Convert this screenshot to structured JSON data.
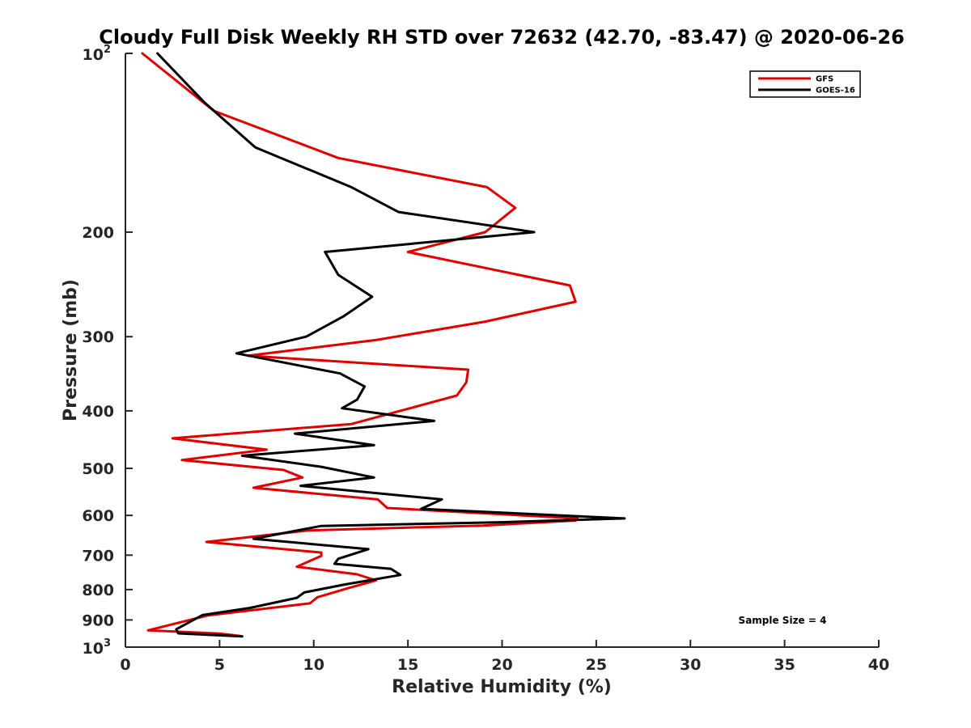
{
  "chart_data": {
    "type": "line",
    "title": "Cloudy Full Disk Weekly RH STD over 72632 (42.70, -83.47) @ 2020-06-26",
    "xlabel": "Relative Humidity (%)",
    "ylabel": "Pressure (mb)",
    "xlim": [
      0,
      40
    ],
    "ylim": [
      100,
      1000
    ],
    "y_scale": "log",
    "y_reversed": true,
    "grid": false,
    "legend_position": "top-right",
    "x_ticks": [
      "0",
      "5",
      "10",
      "15",
      "20",
      "25",
      "30",
      "35",
      "40"
    ],
    "x_tick_values": [
      0,
      5,
      10,
      15,
      20,
      25,
      30,
      35,
      40
    ],
    "y_ticks": [
      {
        "value": 100,
        "base": "10",
        "exp": "2"
      },
      {
        "value": 200,
        "label": "200"
      },
      {
        "value": 300,
        "label": "300"
      },
      {
        "value": 400,
        "label": "400"
      },
      {
        "value": 500,
        "label": "500"
      },
      {
        "value": 600,
        "label": "600"
      },
      {
        "value": 700,
        "label": "700"
      },
      {
        "value": 800,
        "label": "800"
      },
      {
        "value": 900,
        "label": "900"
      },
      {
        "value": 1000,
        "base": "10",
        "exp": "3"
      }
    ],
    "annotation": "Sample Size = 4",
    "series": [
      {
        "name": "GFS",
        "color": "#e00000",
        "points": [
          [
            0.9,
            100
          ],
          [
            4.7,
            125
          ],
          [
            11.3,
            150
          ],
          [
            19.2,
            168
          ],
          [
            20.7,
            182
          ],
          [
            19.1,
            200
          ],
          [
            15.0,
            216
          ],
          [
            23.6,
            246
          ],
          [
            23.9,
            262
          ],
          [
            19.1,
            283
          ],
          [
            13.3,
            304
          ],
          [
            6.5,
            323
          ],
          [
            18.2,
            341
          ],
          [
            18.1,
            358
          ],
          [
            17.6,
            377
          ],
          [
            12.0,
            421
          ],
          [
            2.5,
            445
          ],
          [
            7.5,
            465
          ],
          [
            3.0,
            484
          ],
          [
            8.4,
            503
          ],
          [
            9.4,
            518
          ],
          [
            6.8,
            539
          ],
          [
            13.4,
            564
          ],
          [
            13.9,
            583
          ],
          [
            24.0,
            607
          ],
          [
            23.9,
            612
          ],
          [
            19.0,
            624
          ],
          [
            9.7,
            636
          ],
          [
            4.3,
            665
          ],
          [
            10.4,
            693
          ],
          [
            10.4,
            702
          ],
          [
            9.1,
            732
          ],
          [
            12.3,
            754
          ],
          [
            13.3,
            772
          ],
          [
            11.8,
            796
          ],
          [
            10.2,
            824
          ],
          [
            9.8,
            844
          ],
          [
            4.4,
            884
          ],
          [
            1.2,
            937
          ],
          [
            5.0,
            949
          ],
          [
            6.1,
            958
          ]
        ]
      },
      {
        "name": "GOES-16",
        "color": "#000000",
        "points": [
          [
            1.7,
            100
          ],
          [
            4.2,
            121
          ],
          [
            6.9,
            144
          ],
          [
            12.0,
            168
          ],
          [
            14.5,
            185
          ],
          [
            21.7,
            200
          ],
          [
            10.6,
            216
          ],
          [
            11.3,
            236
          ],
          [
            13.1,
            257
          ],
          [
            11.6,
            277
          ],
          [
            9.6,
            300
          ],
          [
            5.9,
            320
          ],
          [
            11.4,
            346
          ],
          [
            12.7,
            364
          ],
          [
            12.3,
            383
          ],
          [
            11.5,
            396
          ],
          [
            16.4,
            416
          ],
          [
            9.0,
            437
          ],
          [
            13.2,
            457
          ],
          [
            6.2,
            476
          ],
          [
            10.4,
            497
          ],
          [
            13.2,
            518
          ],
          [
            9.3,
            535
          ],
          [
            16.8,
            564
          ],
          [
            15.7,
            585
          ],
          [
            26.5,
            607
          ],
          [
            20.0,
            616
          ],
          [
            10.4,
            625
          ],
          [
            6.8,
            657
          ],
          [
            12.9,
            684
          ],
          [
            11.3,
            710
          ],
          [
            11.1,
            724
          ],
          [
            14.1,
            738
          ],
          [
            14.6,
            756
          ],
          [
            11.7,
            784
          ],
          [
            9.5,
            809
          ],
          [
            9.1,
            826
          ],
          [
            6.6,
            859
          ],
          [
            4.1,
            883
          ],
          [
            2.7,
            933
          ],
          [
            2.8,
            948
          ],
          [
            6.2,
            959
          ]
        ]
      }
    ]
  }
}
